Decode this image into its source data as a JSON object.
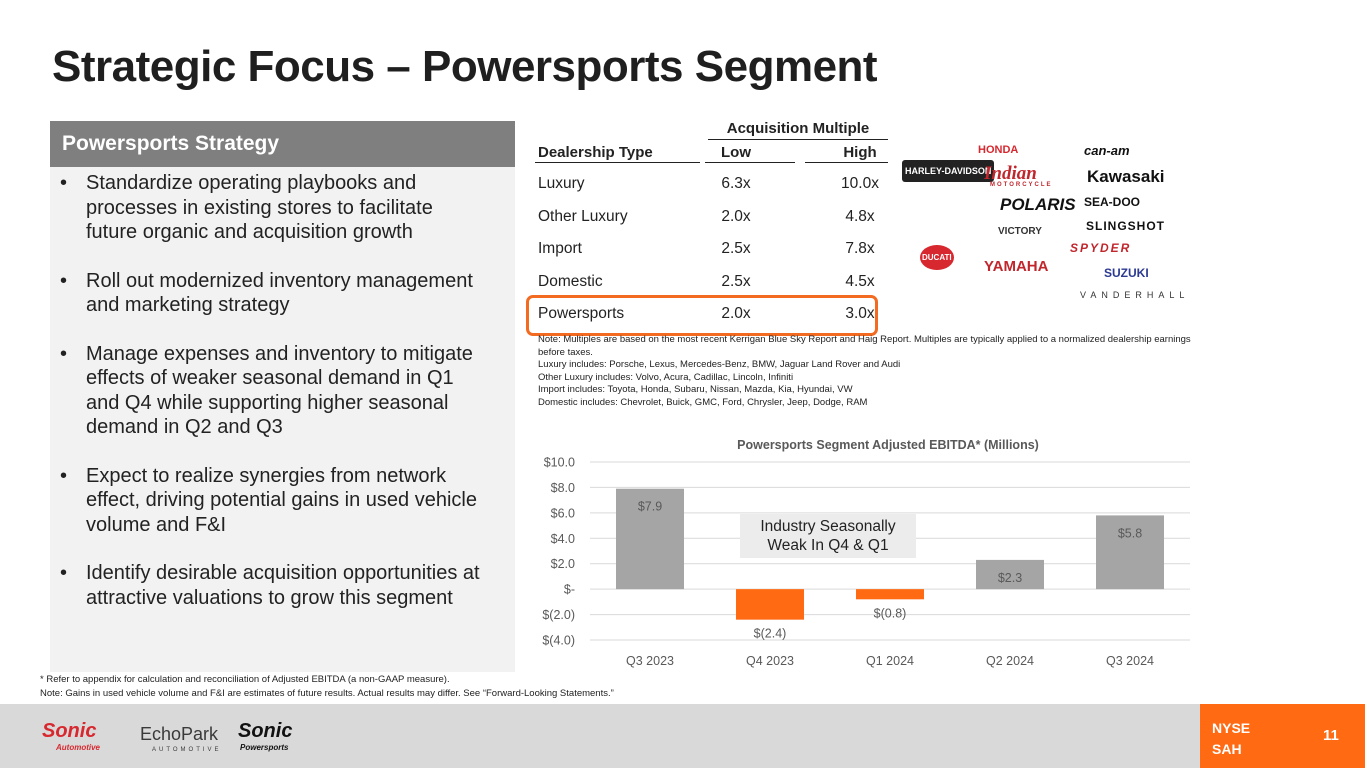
{
  "title": "Strategic Focus – Powersports Segment",
  "strategy": {
    "heading": "Powersports Strategy",
    "bullets": [
      "Standardize operating playbooks and processes in existing stores to facilitate future organic and acquisition growth",
      "Roll out modernized inventory management and marketing strategy",
      "Manage expenses and inventory to mitigate effects of weaker seasonal demand in Q1 and Q4 while supporting higher seasonal demand in Q2 and Q3",
      "Expect to realize synergies from network effect, driving potential gains in used vehicle volume and F&I",
      "Identify desirable acquisition opportunities at attractive valuations to grow this segment"
    ]
  },
  "table": {
    "group_header": "Acquisition Multiple",
    "columns": [
      "Dealership Type",
      "Low",
      "High"
    ],
    "rows": [
      [
        "Luxury",
        "6.3x",
        "10.0x"
      ],
      [
        "Other Luxury",
        "2.0x",
        "4.8x"
      ],
      [
        "Import",
        "2.5x",
        "7.8x"
      ],
      [
        "Domestic",
        "2.5x",
        "4.5x"
      ],
      [
        "Powersports",
        "2.0x",
        "3.0x"
      ]
    ]
  },
  "notes": [
    "Note: Multiples are based on the most recent Kerrigan Blue Sky Report and Haig Report. Multiples are typically applied to a normalized dealership earnings before taxes.",
    "Luxury includes: Porsche, Lexus, Mercedes-Benz, BMW, Jaguar Land Rover and Audi",
    "Other Luxury includes: Volvo, Acura, Cadillac, Lincoln, Infiniti",
    "Import includes: Toyota, Honda, Subaru, Nissan, Mazda, Kia, Hyundai, VW",
    "Domestic includes: Chevrolet, Buick, GMC, Ford, Chrysler, Jeep, Dodge, RAM"
  ],
  "logos": [
    "HARLEY-DAVIDSON",
    "HONDA",
    "can-am",
    "Indian",
    "MOTORCYCLE",
    "Kawasaki",
    "POLARIS",
    "SEA-DOO",
    "SLINGSHOT",
    "VICTORY",
    "YAMAHA",
    "SPYDER",
    "SUZUKI",
    "VANDERHALL",
    "DUCATI"
  ],
  "chart_data": {
    "type": "bar",
    "title": "Powersports Segment Adjusted EBITDA* (Millions)",
    "categories": [
      "Q3 2023",
      "Q4 2023",
      "Q1 2024",
      "Q2 2024",
      "Q3 2024"
    ],
    "values": [
      7.9,
      -2.4,
      -0.8,
      2.3,
      5.8
    ],
    "value_labels": [
      "$7.9",
      "$(2.4)",
      "$(0.8)",
      "$2.3",
      "$5.8"
    ],
    "colors": [
      "#a5a5a5",
      "#ff6a13",
      "#ff6a13",
      "#a5a5a5",
      "#a5a5a5"
    ],
    "ylim": [
      -4,
      10
    ],
    "yticks": [
      {
        "value": -4,
        "label": "$(4.0)"
      },
      {
        "value": -2,
        "label": "$(2.0)"
      },
      {
        "value": 0,
        "label": "$-"
      },
      {
        "value": 2,
        "label": "$2.0"
      },
      {
        "value": 4,
        "label": "$4.0"
      },
      {
        "value": 6,
        "label": "$6.0"
      },
      {
        "value": 8,
        "label": "$8.0"
      },
      {
        "value": 10,
        "label": "$10.0"
      }
    ],
    "grid": true,
    "annotation": "Industry Seasonally Weak In Q4 & Q1"
  },
  "footnotes": [
    "* Refer to appendix for calculation and reconciliation of Adjusted EBITDA (a non-GAAP measure).",
    "Note: Gains in used vehicle volume and F&I are estimates of future results. Actual results may differ. See “Forward-Looking Statements.”"
  ],
  "footer": {
    "logos": [
      "Sonic",
      "Automotive",
      "EchoPark",
      "AUTOMOTIVE",
      "Sonic",
      "Powersports"
    ],
    "exchange": "NYSE",
    "ticker": "SAH",
    "page": "11"
  }
}
